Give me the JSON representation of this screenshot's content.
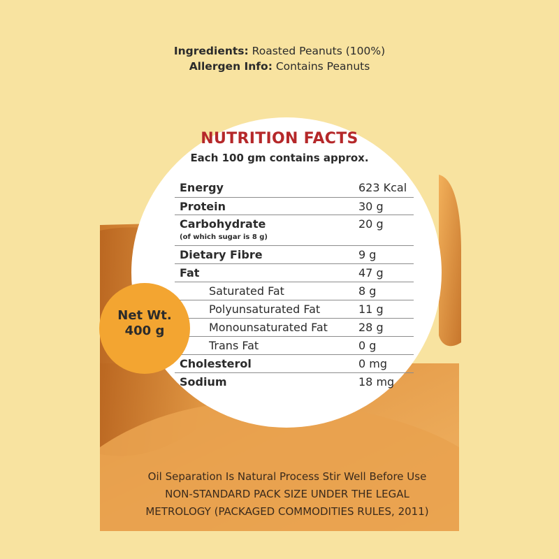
{
  "ingredients": {
    "label": "Ingredients:",
    "value": "Roasted Peanuts (100%)"
  },
  "allergen": {
    "label": "Allergen Info:",
    "value": "Contains Peanuts"
  },
  "nutrition": {
    "title": "NUTRITION FACTS",
    "subtitle": "Each 100 gm contains approx.",
    "rows": [
      {
        "name": "Energy",
        "value": "623 Kcal"
      },
      {
        "name": "Protein",
        "value": "30 g"
      },
      {
        "name": "Carbohydrate",
        "value": "20 g",
        "note": "(of which sugar is 8 g)"
      },
      {
        "name": "Dietary Fibre",
        "value": "9 g"
      },
      {
        "name": "Fat",
        "value": "47 g"
      },
      {
        "name": "Saturated Fat",
        "value": "8 g"
      },
      {
        "name": "Polyunsaturated Fat",
        "value": "11 g"
      },
      {
        "name": "Monounsaturated Fat",
        "value": "28 g"
      },
      {
        "name": "Trans Fat",
        "value": "0 g"
      },
      {
        "name": "Cholesterol",
        "value": "0 mg"
      },
      {
        "name": "Sodium",
        "value": "18 mg"
      }
    ]
  },
  "net_weight": {
    "line1": "Net Wt.",
    "line2": "400 g"
  },
  "footer": {
    "line1": "Oil Separation Is Natural Process Stir Well Before Use",
    "line2": "NON-STANDARD PACK SIZE UNDER THE LEGAL",
    "line3": "METROLOGY (PACKAGED COMMODITIES RULES, 2011)"
  },
  "colors": {
    "background": "#f8e3a0",
    "panel_orange": "#e9a04d",
    "title_red": "#b5282a",
    "badge": "#f3a531"
  }
}
